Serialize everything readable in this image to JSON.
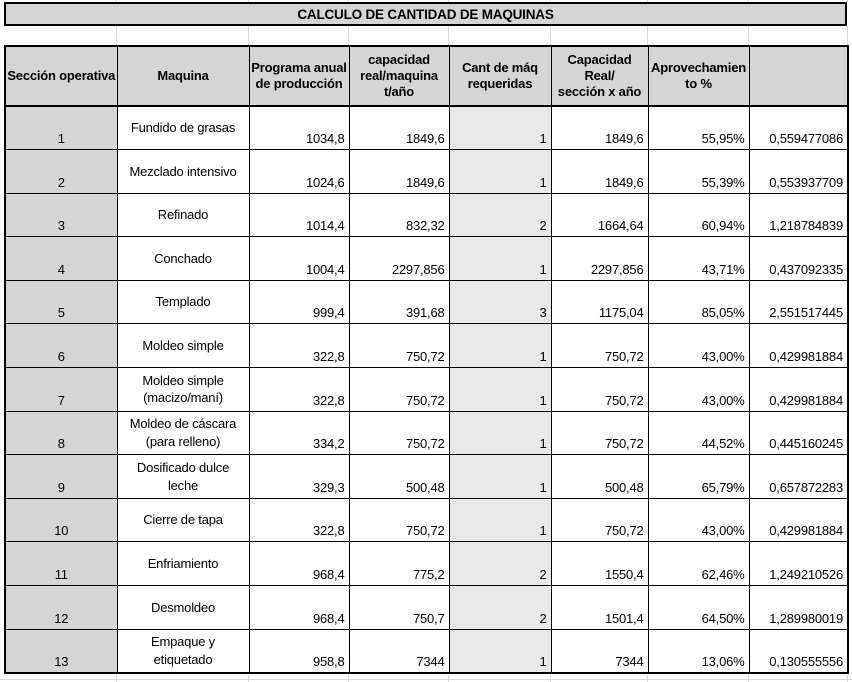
{
  "title": "CALCULO DE CANTIDAD DE MAQUINAS",
  "colors": {
    "header_fill": "#d5d5d5",
    "section_column_fill": "#d5d5d5",
    "cant_maq_column_fill": "#e9e9e9",
    "border": "#000000",
    "gridline": "#d9d9d9"
  },
  "table": {
    "column_keys": [
      "seccion-operativa",
      "maquina",
      "programa-anual-produccion",
      "capacidad-real-maquina",
      "cant-maq-requeridas",
      "capacidad-real-seccion",
      "aprovechamiento-pct",
      "indice-maquinas"
    ],
    "headers": [
      "Sección operativa",
      "Maquina",
      "Programa anual\nde producción",
      "capacidad\nreal/maquina\nt/año",
      "Cant de máq\nrequeridas",
      "Capacidad\nReal/\nsección x año",
      "Aprovechamien\nto %",
      ""
    ],
    "rows": [
      [
        "1",
        "Fundido de grasas",
        "1034,8",
        "1849,6",
        "1",
        "1849,6",
        "55,95%",
        "0,559477086"
      ],
      [
        "2",
        "Mezclado intensivo",
        "1024,6",
        "1849,6",
        "1",
        "1849,6",
        "55,39%",
        "0,553937709"
      ],
      [
        "3",
        "Refinado",
        "1014,4",
        "832,32",
        "2",
        "1664,64",
        "60,94%",
        "1,218784839"
      ],
      [
        "4",
        "Conchado",
        "1004,4",
        "2297,856",
        "1",
        "2297,856",
        "43,71%",
        "0,437092335"
      ],
      [
        "5",
        "Templado",
        "999,4",
        "391,68",
        "3",
        "1175,04",
        "85,05%",
        "2,551517445"
      ],
      [
        "6",
        "Moldeo simple",
        "322,8",
        "750,72",
        "1",
        "750,72",
        "43,00%",
        "0,429981884"
      ],
      [
        "7",
        "Moldeo simple\n(macizo/maní)",
        "322,8",
        "750,72",
        "1",
        "750,72",
        "43,00%",
        "0,429981884"
      ],
      [
        "8",
        "Moldeo de cáscara\n(para relleno)",
        "334,2",
        "750,72",
        "1",
        "750,72",
        "44,52%",
        "0,445160245"
      ],
      [
        "9",
        "Dosificado dulce\nleche",
        "329,3",
        "500,48",
        "1",
        "500,48",
        "65,79%",
        "0,657872283"
      ],
      [
        "10",
        "Cierre de tapa",
        "322,8",
        "750,72",
        "1",
        "750,72",
        "43,00%",
        "0,429981884"
      ],
      [
        "11",
        "Enfriamiento",
        "968,4",
        "775,2",
        "2",
        "1550,4",
        "62,46%",
        "1,249210526"
      ],
      [
        "12",
        "Desmoldeo",
        "968,4",
        "750,7",
        "2",
        "1501,4",
        "64,50%",
        "1,289980019"
      ],
      [
        "13",
        "Empaque y\netiquetado",
        "958,8",
        "7344",
        "1",
        "7344",
        "13,06%",
        "0,130555556"
      ]
    ]
  }
}
